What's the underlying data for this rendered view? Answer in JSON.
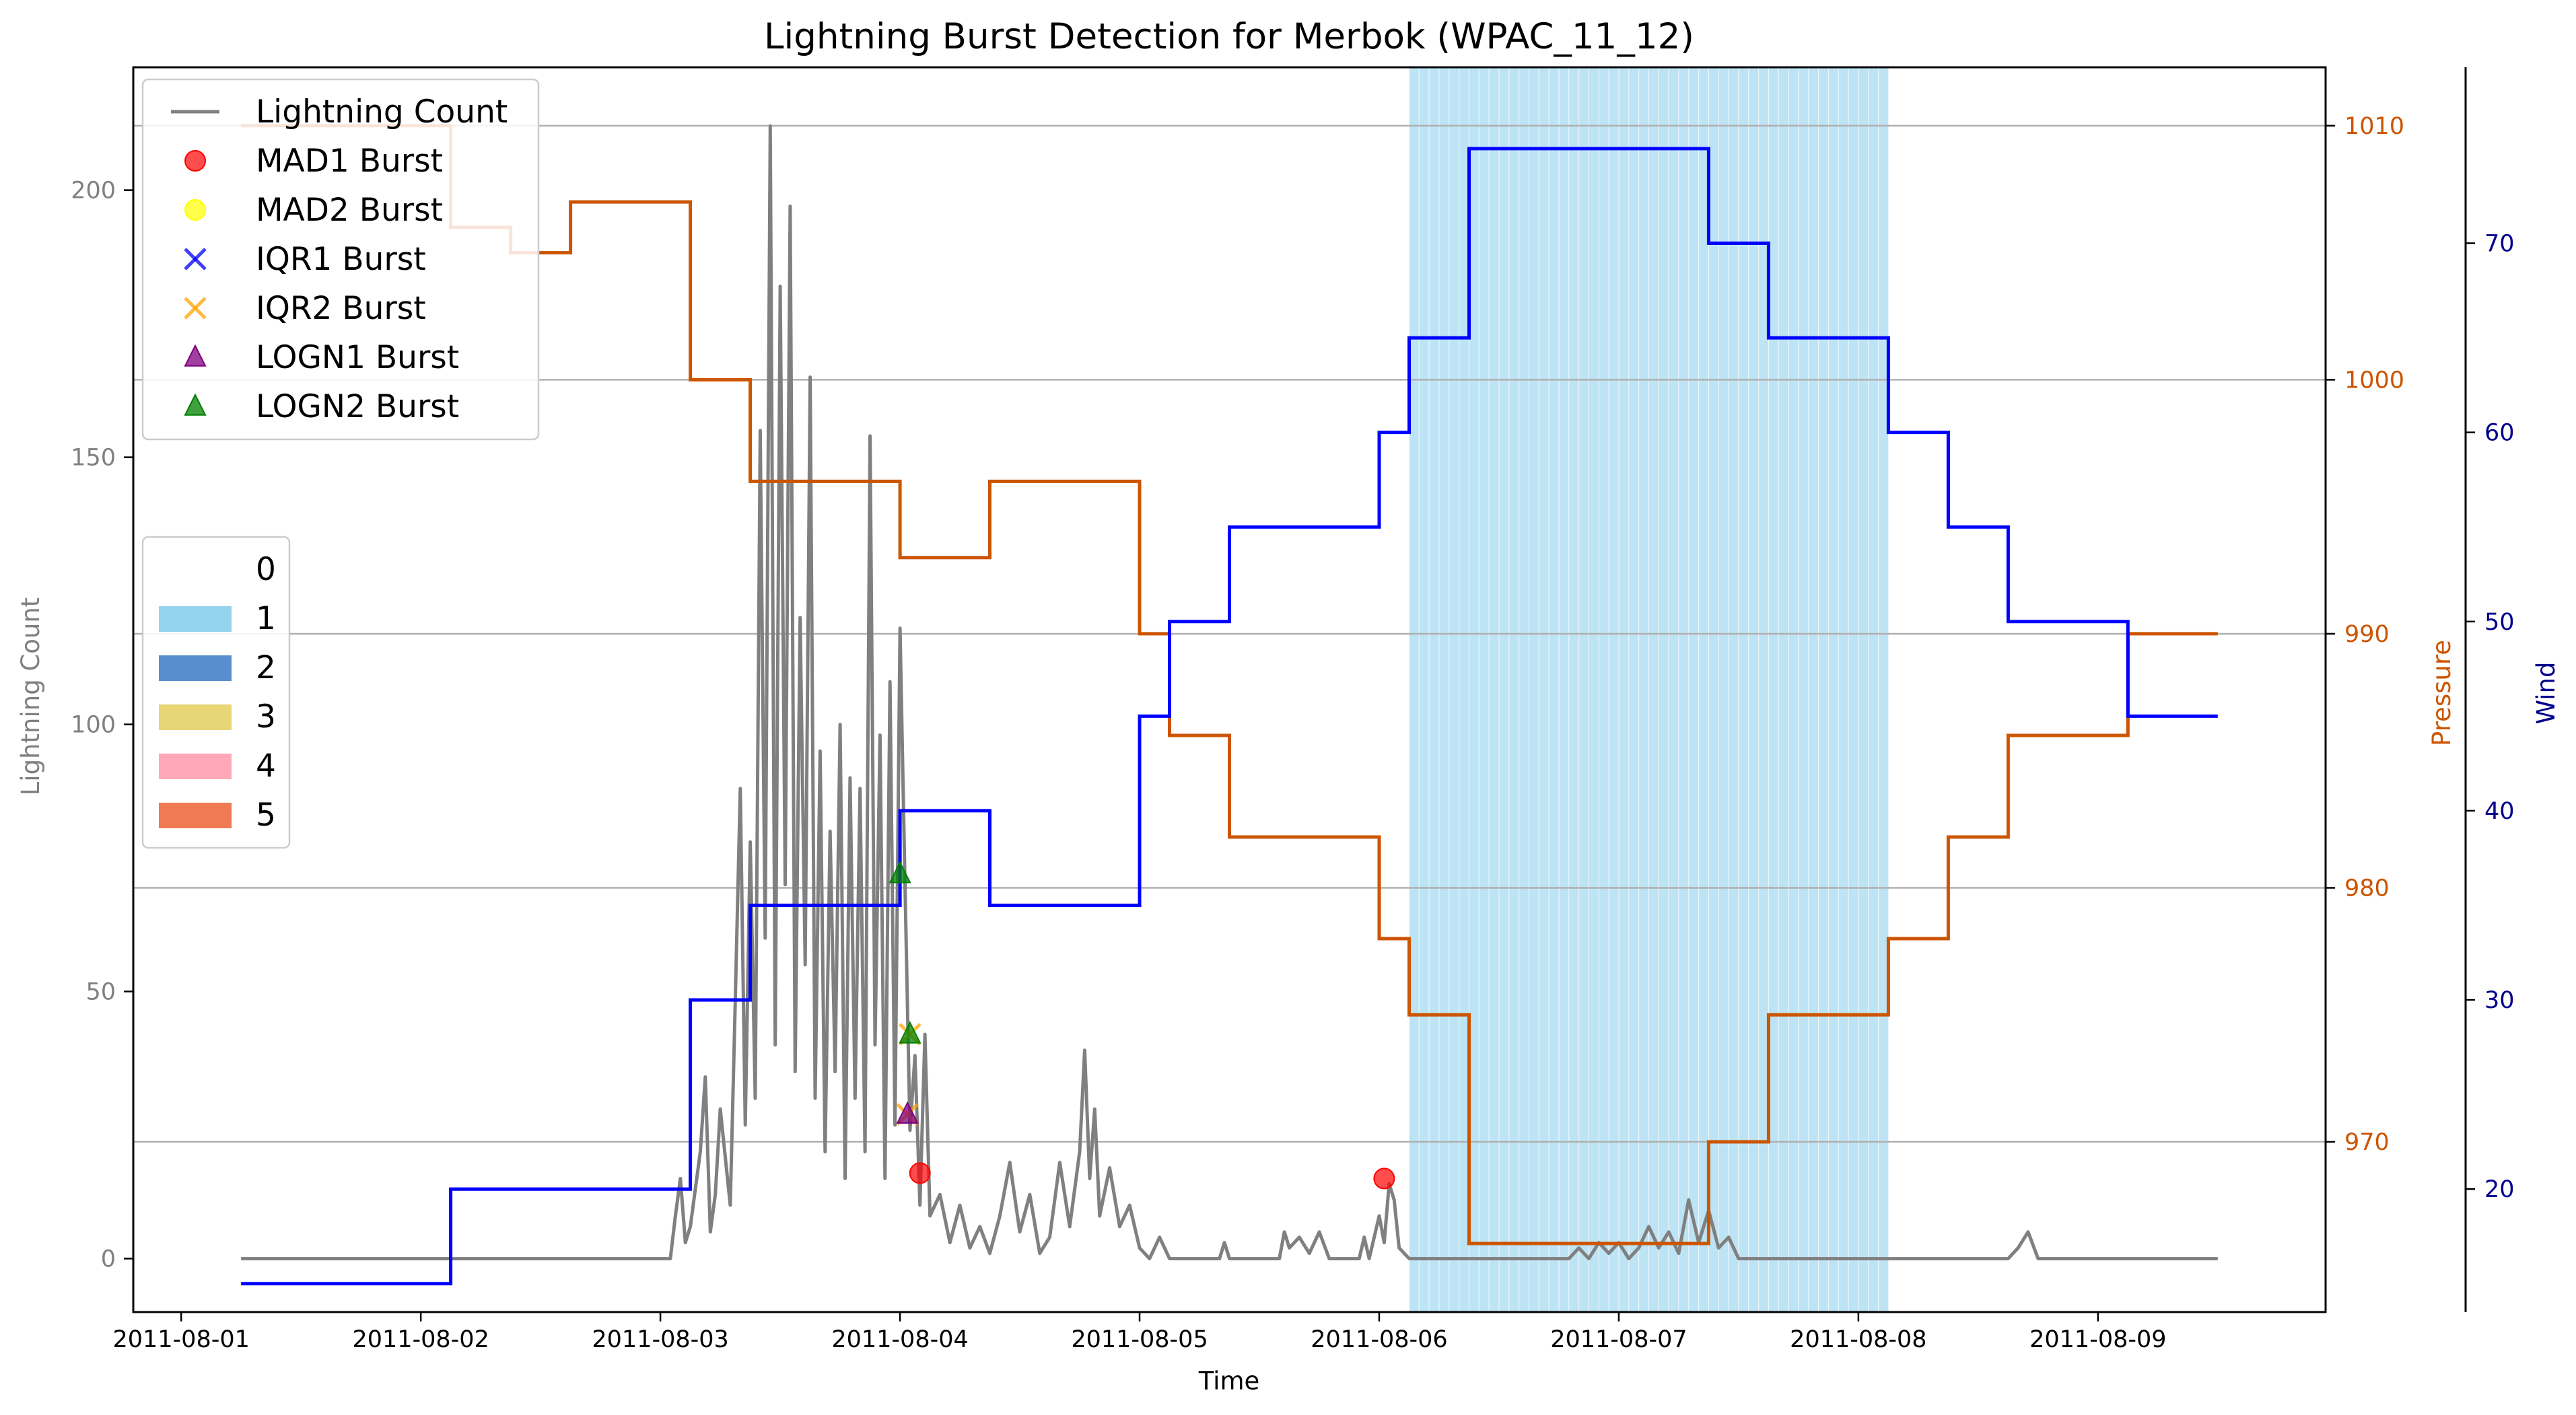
{
  "chart_data": {
    "type": "line",
    "title": "Lightning Burst Detection for Merbok (WPAC_11_12)",
    "xlabel": "Time",
    "ylabel_left": "Lightning Count",
    "ylabel_pressure": "Pressure",
    "ylabel_wind": "Wind",
    "x_tick_labels": [
      "2011-08-01",
      "2011-08-02",
      "2011-08-03",
      "2011-08-04",
      "2011-08-05",
      "2011-08-06",
      "2011-08-07",
      "2011-08-08",
      "2011-08-09"
    ],
    "xlim_days": [
      -0.2,
      8.95
    ],
    "count_ylim": [
      -10,
      223
    ],
    "count_ticks": [
      0,
      50,
      100,
      150,
      200
    ],
    "pressure_ylim": [
      963.3,
      1012.3
    ],
    "pressure_ticks": [
      970,
      980,
      990,
      1000,
      1010
    ],
    "wind_ylim": [
      13.5,
      79.3
    ],
    "wind_ticks": [
      20,
      30,
      40,
      50,
      60,
      70
    ],
    "grid": "horizontal lines",
    "colors": {
      "count": "#808080",
      "pressure": "#cc5500",
      "wind": "#0000ff",
      "wind_axis": "#00008b",
      "shade": "#87ceeb"
    },
    "pressure_series": {
      "name": "Pressure",
      "points": [
        [
          "2011-08-01 06:00",
          1010
        ],
        [
          "2011-08-02 03:00",
          1006
        ],
        [
          "2011-08-02 09:00",
          1005
        ],
        [
          "2011-08-02 15:00",
          1007
        ],
        [
          "2011-08-03 03:00",
          1000
        ],
        [
          "2011-08-03 09:00",
          996
        ],
        [
          "2011-08-04 00:00",
          993
        ],
        [
          "2011-08-04 09:00",
          996
        ],
        [
          "2011-08-05 00:00",
          990
        ],
        [
          "2011-08-05 03:00",
          986
        ],
        [
          "2011-08-05 09:00",
          982
        ],
        [
          "2011-08-06 00:00",
          978
        ],
        [
          "2011-08-06 03:00",
          975
        ],
        [
          "2011-08-06 09:00",
          966
        ],
        [
          "2011-08-07 09:00",
          970
        ],
        [
          "2011-08-07 15:00",
          975
        ],
        [
          "2011-08-08 03:00",
          978
        ],
        [
          "2011-08-08 09:00",
          982
        ],
        [
          "2011-08-08 15:00",
          986
        ],
        [
          "2011-08-09 03:00",
          990
        ],
        [
          "2011-08-09 12:00",
          990
        ]
      ]
    },
    "wind_series": {
      "name": "Wind",
      "points": [
        [
          "2011-08-01 06:00",
          15
        ],
        [
          "2011-08-02 03:00",
          20
        ],
        [
          "2011-08-03 03:00",
          30
        ],
        [
          "2011-08-03 09:00",
          35
        ],
        [
          "2011-08-04 00:00",
          40
        ],
        [
          "2011-08-04 09:00",
          35
        ],
        [
          "2011-08-05 00:00",
          45
        ],
        [
          "2011-08-05 03:00",
          50
        ],
        [
          "2011-08-05 09:00",
          55
        ],
        [
          "2011-08-06 00:00",
          60
        ],
        [
          "2011-08-06 03:00",
          65
        ],
        [
          "2011-08-06 09:00",
          75
        ],
        [
          "2011-08-07 09:00",
          70
        ],
        [
          "2011-08-07 15:00",
          65
        ],
        [
          "2011-08-08 03:00",
          60
        ],
        [
          "2011-08-08 09:00",
          55
        ],
        [
          "2011-08-08 15:00",
          50
        ],
        [
          "2011-08-09 03:00",
          45
        ],
        [
          "2011-08-09 12:00",
          45
        ]
      ]
    },
    "count_series": {
      "name": "Lightning Count",
      "points": [
        [
          "2011-08-01 06:00",
          0
        ],
        [
          "2011-08-03 01:00",
          0
        ],
        [
          "2011-08-03 01:30",
          8
        ],
        [
          "2011-08-03 02:00",
          15
        ],
        [
          "2011-08-03 02:30",
          3
        ],
        [
          "2011-08-03 03:00",
          6
        ],
        [
          "2011-08-03 04:00",
          20
        ],
        [
          "2011-08-03 04:30",
          34
        ],
        [
          "2011-08-03 05:00",
          5
        ],
        [
          "2011-08-03 05:30",
          12
        ],
        [
          "2011-08-03 06:00",
          28
        ],
        [
          "2011-08-03 07:00",
          10
        ],
        [
          "2011-08-03 07:30",
          48
        ],
        [
          "2011-08-03 08:00",
          88
        ],
        [
          "2011-08-03 08:30",
          25
        ],
        [
          "2011-08-03 09:00",
          78
        ],
        [
          "2011-08-03 09:30",
          30
        ],
        [
          "2011-08-03 10:00",
          155
        ],
        [
          "2011-08-03 10:30",
          60
        ],
        [
          "2011-08-03 11:00",
          212
        ],
        [
          "2011-08-03 11:30",
          40
        ],
        [
          "2011-08-03 12:00",
          182
        ],
        [
          "2011-08-03 12:30",
          70
        ],
        [
          "2011-08-03 13:00",
          197
        ],
        [
          "2011-08-03 13:30",
          35
        ],
        [
          "2011-08-03 14:00",
          120
        ],
        [
          "2011-08-03 14:30",
          55
        ],
        [
          "2011-08-03 15:00",
          165
        ],
        [
          "2011-08-03 15:30",
          30
        ],
        [
          "2011-08-03 16:00",
          95
        ],
        [
          "2011-08-03 16:30",
          20
        ],
        [
          "2011-08-03 17:00",
          80
        ],
        [
          "2011-08-03 17:30",
          35
        ],
        [
          "2011-08-03 18:00",
          100
        ],
        [
          "2011-08-03 18:30",
          15
        ],
        [
          "2011-08-03 19:00",
          90
        ],
        [
          "2011-08-03 19:30",
          30
        ],
        [
          "2011-08-03 20:00",
          88
        ],
        [
          "2011-08-03 20:30",
          20
        ],
        [
          "2011-08-03 21:00",
          154
        ],
        [
          "2011-08-03 21:30",
          40
        ],
        [
          "2011-08-03 22:00",
          98
        ],
        [
          "2011-08-03 22:30",
          15
        ],
        [
          "2011-08-03 23:00",
          108
        ],
        [
          "2011-08-03 23:30",
          25
        ],
        [
          "2011-08-04 00:00",
          118
        ],
        [
          "2011-08-04 00:30",
          70
        ],
        [
          "2011-08-04 01:00",
          24
        ],
        [
          "2011-08-04 01:30",
          38
        ],
        [
          "2011-08-04 02:00",
          10
        ],
        [
          "2011-08-04 02:30",
          42
        ],
        [
          "2011-08-04 03:00",
          8
        ],
        [
          "2011-08-04 04:00",
          12
        ],
        [
          "2011-08-04 05:00",
          3
        ],
        [
          "2011-08-04 06:00",
          10
        ],
        [
          "2011-08-04 07:00",
          2
        ],
        [
          "2011-08-04 08:00",
          6
        ],
        [
          "2011-08-04 09:00",
          1
        ],
        [
          "2011-08-04 10:00",
          8
        ],
        [
          "2011-08-04 11:00",
          18
        ],
        [
          "2011-08-04 12:00",
          5
        ],
        [
          "2011-08-04 13:00",
          12
        ],
        [
          "2011-08-04 14:00",
          1
        ],
        [
          "2011-08-04 15:00",
          4
        ],
        [
          "2011-08-04 16:00",
          18
        ],
        [
          "2011-08-04 17:00",
          6
        ],
        [
          "2011-08-04 18:00",
          20
        ],
        [
          "2011-08-04 18:30",
          39
        ],
        [
          "2011-08-04 19:00",
          15
        ],
        [
          "2011-08-04 19:30",
          28
        ],
        [
          "2011-08-04 20:00",
          8
        ],
        [
          "2011-08-04 21:00",
          17
        ],
        [
          "2011-08-04 22:00",
          6
        ],
        [
          "2011-08-04 23:00",
          10
        ],
        [
          "2011-08-05 00:00",
          2
        ],
        [
          "2011-08-05 01:00",
          0
        ],
        [
          "2011-08-05 02:00",
          4
        ],
        [
          "2011-08-05 03:00",
          0
        ],
        [
          "2011-08-05 08:00",
          0
        ],
        [
          "2011-08-05 08:30",
          3
        ],
        [
          "2011-08-05 09:00",
          0
        ],
        [
          "2011-08-05 14:00",
          0
        ],
        [
          "2011-08-05 14:30",
          5
        ],
        [
          "2011-08-05 15:00",
          2
        ],
        [
          "2011-08-05 16:00",
          4
        ],
        [
          "2011-08-05 17:00",
          1
        ],
        [
          "2011-08-05 18:00",
          5
        ],
        [
          "2011-08-05 19:00",
          0
        ],
        [
          "2011-08-05 22:00",
          0
        ],
        [
          "2011-08-05 22:30",
          4
        ],
        [
          "2011-08-05 23:00",
          0
        ],
        [
          "2011-08-06 00:00",
          8
        ],
        [
          "2011-08-06 00:30",
          3
        ],
        [
          "2011-08-06 01:00",
          14
        ],
        [
          "2011-08-06 01:30",
          11
        ],
        [
          "2011-08-06 02:00",
          2
        ],
        [
          "2011-08-06 03:00",
          0
        ],
        [
          "2011-08-06 19:00",
          0
        ],
        [
          "2011-08-06 20:00",
          2
        ],
        [
          "2011-08-06 21:00",
          0
        ],
        [
          "2011-08-06 22:00",
          3
        ],
        [
          "2011-08-06 23:00",
          1
        ],
        [
          "2011-08-07 00:00",
          3
        ],
        [
          "2011-08-07 01:00",
          0
        ],
        [
          "2011-08-07 02:00",
          2
        ],
        [
          "2011-08-07 03:00",
          6
        ],
        [
          "2011-08-07 04:00",
          2
        ],
        [
          "2011-08-07 05:00",
          5
        ],
        [
          "2011-08-07 06:00",
          1
        ],
        [
          "2011-08-07 07:00",
          11
        ],
        [
          "2011-08-07 08:00",
          3
        ],
        [
          "2011-08-07 09:00",
          9
        ],
        [
          "2011-08-07 10:00",
          2
        ],
        [
          "2011-08-07 11:00",
          4
        ],
        [
          "2011-08-07 12:00",
          0
        ],
        [
          "2011-08-08 15:00",
          0
        ],
        [
          "2011-08-08 16:00",
          2
        ],
        [
          "2011-08-08 17:00",
          5
        ],
        [
          "2011-08-08 18:00",
          0
        ],
        [
          "2011-08-09 12:00",
          0
        ]
      ]
    },
    "shaded_region": {
      "category": "1",
      "start": "2011-08-06 03:00",
      "end": "2011-08-08 03:00"
    },
    "burst_markers": [
      {
        "type": "LOGN2 Burst",
        "time": "2011-08-04 00:00",
        "value": 72
      },
      {
        "type": "IQR2 Burst",
        "time": "2011-08-04 01:00",
        "value": 42
      },
      {
        "type": "LOGN2 Burst",
        "time": "2011-08-04 01:00",
        "value": 42
      },
      {
        "type": "IQR2 Burst",
        "time": "2011-08-04 00:45",
        "value": 27
      },
      {
        "type": "LOGN1 Burst",
        "time": "2011-08-04 00:45",
        "value": 27
      },
      {
        "type": "MAD1 Burst",
        "time": "2011-08-04 02:00",
        "value": 16
      },
      {
        "type": "MAD1 Burst",
        "time": "2011-08-06 00:30",
        "value": 15
      }
    ],
    "legend_markers": [
      {
        "label": "Lightning Count",
        "kind": "line",
        "color": "#808080"
      },
      {
        "label": "MAD1 Burst",
        "kind": "circle",
        "color": "#ff0000"
      },
      {
        "label": "MAD2 Burst",
        "kind": "circle",
        "color": "#ffff00"
      },
      {
        "label": "IQR1 Burst",
        "kind": "x",
        "color": "#0000ff"
      },
      {
        "label": "IQR2 Burst",
        "kind": "x",
        "color": "#ffa500"
      },
      {
        "label": "LOGN1 Burst",
        "kind": "triangle",
        "color": "#800080"
      },
      {
        "label": "LOGN2 Burst",
        "kind": "triangle",
        "color": "#008000"
      }
    ],
    "legend_categories": [
      {
        "label": "0",
        "color": "#ffffff"
      },
      {
        "label": "1",
        "color": "#87ceeb"
      },
      {
        "label": "2",
        "color": "#4682c8"
      },
      {
        "label": "3",
        "color": "#e6d066"
      },
      {
        "label": "4",
        "color": "#ff9eb0"
      },
      {
        "label": "5",
        "color": "#ee6c40"
      }
    ]
  }
}
